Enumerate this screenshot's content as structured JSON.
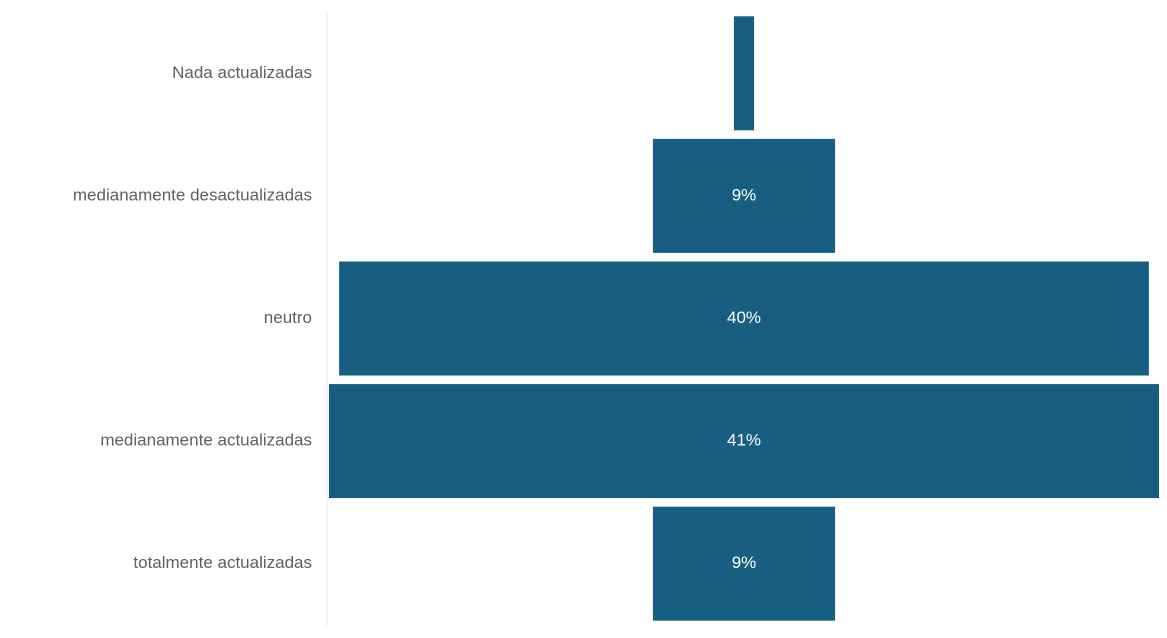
{
  "chart_data": {
    "type": "bar",
    "subtype": "funnel",
    "orientation": "horizontal",
    "categories": [
      "Nada actualizadas",
      "medianamente desactualizadas",
      "neutro",
      "medianamente actualizadas",
      "totalmente actualizadas"
    ],
    "values": [
      1,
      9,
      40,
      41,
      9
    ],
    "data_labels": [
      "",
      "9%",
      "40%",
      "41%",
      "9%"
    ],
    "unit": "%",
    "title": "",
    "xlabel": "",
    "ylabel": "",
    "xlim": [
      0,
      41
    ],
    "grid": false,
    "legend": "none",
    "colors": {
      "bar": "#175e80",
      "label_text": "#5f5f5f",
      "data_label_text": "#ffffff",
      "axis_line": "#e6e6e6"
    }
  }
}
